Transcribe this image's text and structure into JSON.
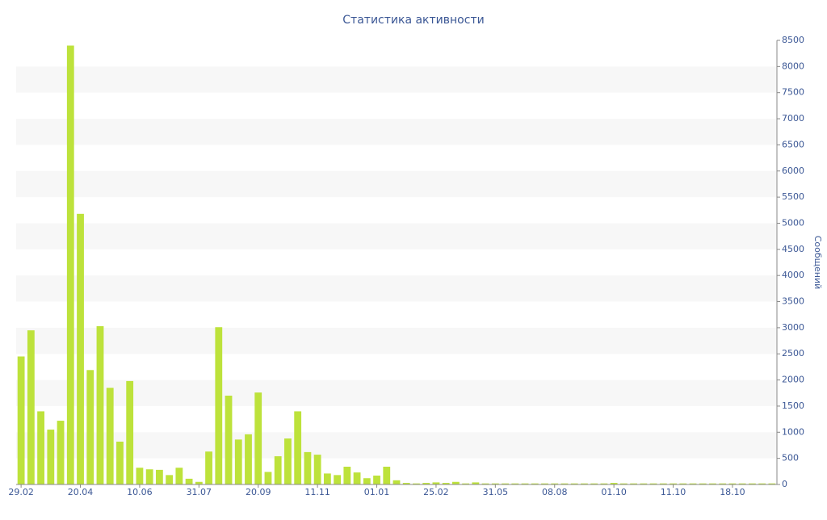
{
  "chart_data": {
    "type": "bar",
    "title": "Статистика активности",
    "y_axis_label": "Сообщений",
    "categories": [
      "29.02",
      null,
      null,
      null,
      null,
      null,
      "20.04",
      null,
      null,
      null,
      null,
      null,
      "10.06",
      null,
      null,
      null,
      null,
      null,
      "31.07",
      null,
      null,
      null,
      null,
      null,
      "20.09",
      null,
      null,
      null,
      null,
      null,
      "11.11",
      null,
      null,
      null,
      null,
      null,
      "01.01",
      null,
      null,
      null,
      null,
      null,
      "25.02",
      null,
      null,
      null,
      null,
      null,
      "31.05",
      null,
      null,
      null,
      null,
      null,
      "08.08",
      null,
      null,
      null,
      null,
      null,
      "01.10",
      null,
      null,
      null,
      null,
      null,
      "11.10",
      null,
      null,
      null,
      null,
      null,
      "18.10",
      null,
      null,
      null,
      null
    ],
    "values": [
      2450,
      2950,
      1400,
      1050,
      1220,
      8400,
      5180,
      2190,
      3030,
      1850,
      820,
      1980,
      320,
      290,
      280,
      180,
      320,
      110,
      50,
      630,
      3010,
      1700,
      860,
      960,
      1760,
      240,
      540,
      880,
      1400,
      620,
      570,
      210,
      180,
      340,
      230,
      120,
      170,
      340,
      80,
      30,
      20,
      30,
      40,
      30,
      50,
      20,
      40,
      20,
      20,
      20,
      20,
      20,
      20,
      20,
      20,
      20,
      20,
      20,
      20,
      20,
      30,
      20,
      20,
      20,
      20,
      20,
      20,
      20,
      20,
      20,
      20,
      20,
      20,
      20,
      20,
      20,
      20
    ],
    "color": "#bde23b",
    "ylim": [
      0,
      8500
    ],
    "yticks": [
      0,
      500,
      1000,
      1500,
      2000,
      2500,
      3000,
      3500,
      4000,
      4500,
      5000,
      5500,
      6000,
      6500,
      7000,
      7500,
      8000,
      8500
    ],
    "grid": true,
    "y_axis_side": "right"
  }
}
